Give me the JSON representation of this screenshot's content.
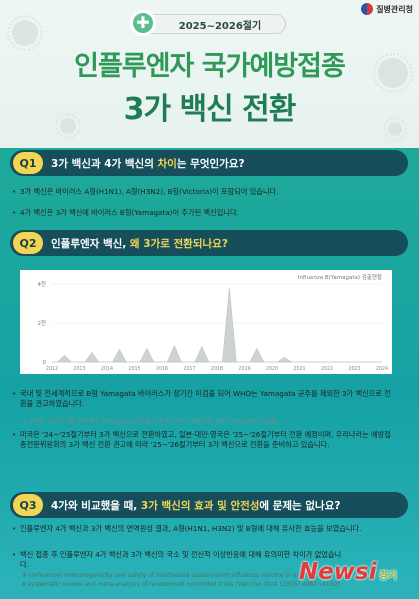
{
  "header": {
    "logo_text": "질병관리청",
    "year_label": "2025~2026절기",
    "title_line1": "인플루엔자 국가예방접종",
    "title_line2": "3가 백신 전환"
  },
  "q1": {
    "num": "Q1",
    "q_part1": "3가 백신과 4가 백신의 ",
    "q_highlight": "차이",
    "q_part2": "는 무엇인가요?",
    "bullets": [
      "3가 백신은 바이러스 A형(H1N1), A형(H3N2), B형(Victoria)이 포함되어 있습니다.",
      "4가 백신은 3가 백신에 바이러스 B형(Yamagata)이 추가된 백신입니다."
    ]
  },
  "q2": {
    "num": "Q2",
    "q_part1": "인플루엔자 백신, ",
    "q_highlight": "왜 3가로 전환되나요?",
    "bullets": [
      "국내 및 전세계적으로 B형 Yamagata 바이러스가 장기간 미검출 되어 WHO는 Yamagata 균주를 제외한 3가 백신으로 전환을 권고하였습니다.",
      "미국은 '24~'25절기부터 3가 백신으로 전환하였고, 일본·대만·영국은 '25~'26절기부터 전환 예정이며, 우리나라는 예방접종전문위원회의 3가 백신 전환 권고에 따라 '25~'26절기부터 3가 백신으로 전환을 준비하고 있습니다."
    ],
    "note": "※ (국외) '19년 7월 이후 B형 Yamagata 미검출, (국내) '20년 3월 이후 B형 Yamagata 미검출"
  },
  "chart_data": {
    "type": "area",
    "title": "Influenza B(Yamagata) 검출현황",
    "xlabel": "",
    "ylabel": "",
    "x": [
      "2012",
      "2013",
      "2014",
      "2015",
      "2016",
      "2017",
      "2018",
      "2019",
      "2020",
      "2021",
      "2022",
      "2023",
      "2024"
    ],
    "y_ticks": [
      "0",
      "2천",
      "4천"
    ],
    "ylim": [
      0,
      4000
    ],
    "series": [
      {
        "values": [
          350,
          500,
          650,
          700,
          850,
          800,
          3800,
          700,
          250,
          0,
          0,
          0,
          0
        ]
      }
    ]
  },
  "q3": {
    "num": "Q3",
    "q_part1": "4가와 비교했을 때, ",
    "q_highlight": "3가 백신의 효과 및 안전성",
    "q_part2": "에 문제는 없나요?",
    "bullets": [
      "인플루엔자 4가 백신과 3가 백신의 면역원성 결과, A형(H1N1, H3N2) 및 B형에 대해 유사한 효능을 보였습니다.",
      "백신 접종 후 인플루엔자 4가 백신과 3가 백신의 국소 및 전신적 이상반응에 대해 유의미한 차이가 없었습니다."
    ],
    "reference": "※ (reference) Immunogenicity and safety of inactivated quadrivalent influenza vaccine in adults:",
    "reference2": "A systematic review and meta-analysis of randomised controlled trials (Vaccine 2024 (2305) 4082~4102)"
  },
  "watermark": {
    "text": "Newsi",
    "sub": "경기"
  },
  "colors": {
    "accent_green": "#2f9a57",
    "teal_bg": "#1aa79c",
    "q_bar": "#174e5c",
    "highlight_yellow": "#f2d653"
  }
}
